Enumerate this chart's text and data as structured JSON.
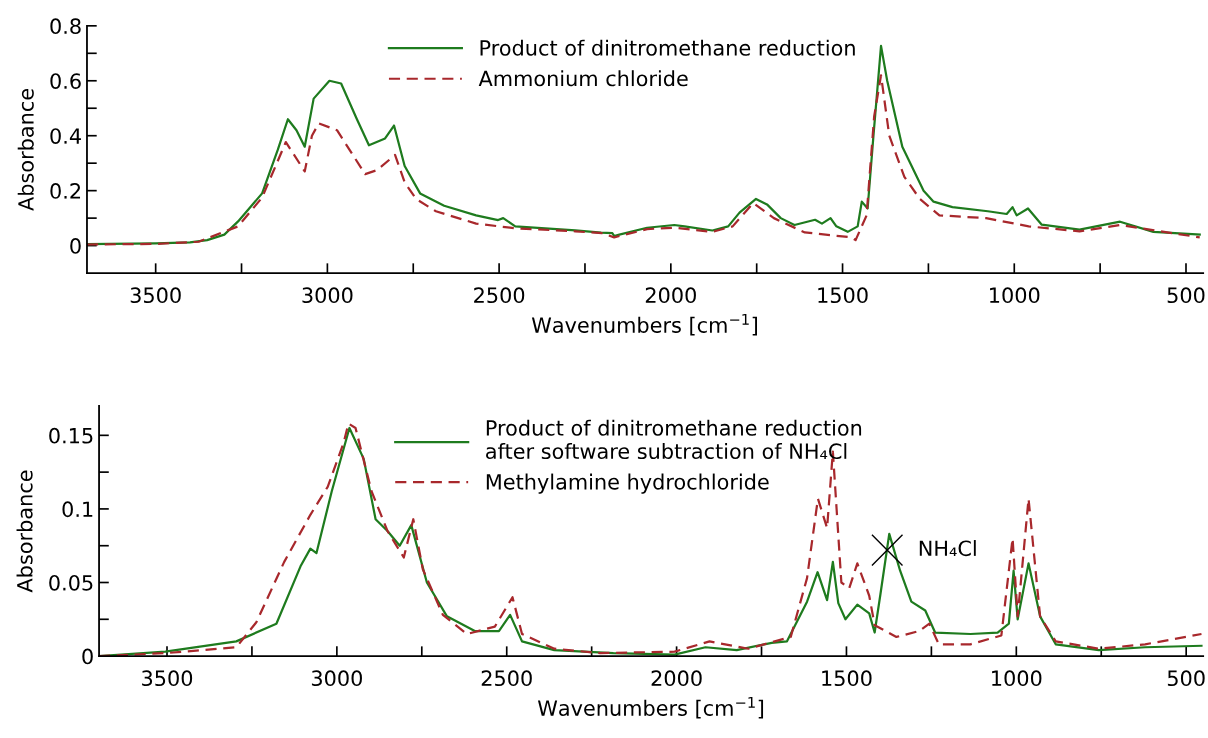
{
  "chart_data": [
    {
      "type": "line",
      "xlabel": "Wavenumbers [cm$^{−1}$]",
      "ylabel": "Absorbance",
      "xlim": [
        3700,
        450
      ],
      "ylim": [
        -0.1,
        0.8
      ],
      "xticks": [
        3500,
        {
          "value": 3250,
          "label": null
        },
        3000,
        {
          "value": 2750,
          "label": null
        },
        2500,
        {
          "value": 2250,
          "label": null
        },
        2000,
        {
          "value": 1750,
          "label": null
        },
        1500,
        {
          "value": 1250,
          "label": null
        },
        1000,
        {
          "value": 750,
          "label": null
        },
        500
      ],
      "yticks": [
        0,
        {
          "value": 0.1,
          "label": null
        },
        0.2,
        {
          "value": 0.3,
          "label": null
        },
        0.4,
        {
          "value": 0.5,
          "label": null
        },
        0.6,
        {
          "value": 0.7,
          "label": null
        },
        0.8
      ],
      "legend": "top",
      "grid": false,
      "marker": "none",
      "series": [
        {
          "name": "Product of dinitromethane reduction",
          "color": "#1e7b1e",
          "line_style": "solid",
          "x": [
            3700,
            3500,
            3400,
            3350,
            3300,
            3260,
            3190,
            3144,
            3115,
            3090,
            3066,
            3040,
            2994,
            2960,
            2914,
            2879,
            2832,
            2806,
            2775,
            2730,
            2660,
            2567,
            2503,
            2488,
            2453,
            2278,
            2203,
            2170,
            2165,
            2150,
            2069,
            1990,
            1960,
            1879,
            1833,
            1800,
            1752,
            1720,
            1680,
            1640,
            1580,
            1560,
            1535,
            1518,
            1485,
            1456,
            1444,
            1427,
            1410,
            1388,
            1370,
            1326,
            1264,
            1235,
            1180,
            1077,
            1022,
            1005,
            993,
            960,
            920,
            810,
            692,
            595,
            460
          ],
          "values": [
            0.005,
            0.008,
            0.012,
            0.02,
            0.04,
            0.088,
            0.19,
            0.35,
            0.46,
            0.42,
            0.36,
            0.535,
            0.6,
            0.59,
            0.46,
            0.365,
            0.39,
            0.437,
            0.29,
            0.19,
            0.145,
            0.11,
            0.093,
            0.1,
            0.07,
            0.055,
            0.047,
            0.045,
            0.035,
            0.04,
            0.065,
            0.075,
            0.07,
            0.055,
            0.07,
            0.12,
            0.17,
            0.15,
            0.1,
            0.075,
            0.094,
            0.08,
            0.1,
            0.07,
            0.05,
            0.07,
            0.16,
            0.135,
            0.4,
            0.727,
            0.6,
            0.36,
            0.2,
            0.16,
            0.14,
            0.125,
            0.115,
            0.14,
            0.11,
            0.135,
            0.076,
            0.058,
            0.087,
            0.05,
            0.04
          ]
        },
        {
          "name": "Ammonium chloride",
          "color": "#a8282c",
          "line_style": "dashed",
          "x": [
            3700,
            3500,
            3375,
            3260,
            3190,
            3121,
            3066,
            3045,
            3025,
            2972,
            2890,
            2855,
            2803,
            2775,
            2742,
            2684,
            2567,
            2453,
            2278,
            2200,
            2165,
            2069,
            1990,
            1879,
            1820,
            1760,
            1700,
            1610,
            1475,
            1462,
            1430,
            1408,
            1388,
            1364,
            1320,
            1275,
            1218,
            1082,
            958,
            810,
            692,
            460
          ],
          "values": [
            0.004,
            0.006,
            0.014,
            0.07,
            0.175,
            0.377,
            0.27,
            0.4,
            0.445,
            0.42,
            0.26,
            0.275,
            0.33,
            0.23,
            0.17,
            0.125,
            0.08,
            0.063,
            0.052,
            0.045,
            0.03,
            0.06,
            0.065,
            0.05,
            0.07,
            0.155,
            0.1,
            0.048,
            0.03,
            0.02,
            0.11,
            0.47,
            0.62,
            0.4,
            0.25,
            0.17,
            0.11,
            0.1,
            0.07,
            0.052,
            0.075,
            0.03
          ]
        }
      ]
    },
    {
      "type": "line",
      "xlabel": "Wavenumbers [cm$^{−1}$]",
      "ylabel": "Absorbance",
      "xlim": [
        3700,
        450
      ],
      "ylim": [
        0,
        0.17
      ],
      "xticks": [
        3500,
        {
          "value": 3250,
          "label": null
        },
        3000,
        {
          "value": 2750,
          "label": null
        },
        2500,
        {
          "value": 2250,
          "label": null
        },
        2000,
        {
          "value": 1750,
          "label": null
        },
        1500,
        {
          "value": 1250,
          "label": null
        },
        1000,
        {
          "value": 750,
          "label": null
        },
        500
      ],
      "yticks": [
        0,
        {
          "value": 0.025,
          "label": null
        },
        0.05,
        {
          "value": 0.075,
          "label": null
        },
        0.1,
        {
          "value": 0.125,
          "label": null
        },
        0.15
      ],
      "legend": "top",
      "grid": false,
      "marker": "none",
      "annotations": [
        {
          "text": "NH₄Cl",
          "x": 1380,
          "y": 0.072
        }
      ],
      "series": [
        {
          "name": "Product of dinitromethane reduction\nafter software subtraction of NH₄Cl",
          "color": "#1e7b1e",
          "line_style": "solid",
          "x": [
            3700,
            3505,
            3296,
            3178,
            3107,
            3078,
            3060,
            3015,
            2963,
            2921,
            2886,
            2851,
            2815,
            2781,
            2735,
            2676,
            2594,
            2523,
            2490,
            2455,
            2360,
            2186,
            2006,
            1915,
            1823,
            1720,
            1675,
            1616,
            1585,
            1557,
            1540,
            1524,
            1503,
            1468,
            1433,
            1417,
            1400,
            1374,
            1342,
            1309,
            1268,
            1239,
            1135,
            1055,
            1022,
            1008,
            996,
            964,
            930,
            884,
            757,
            621,
            455
          ],
          "values": [
            0,
            0.003,
            0.01,
            0.022,
            0.061,
            0.073,
            0.07,
            0.112,
            0.155,
            0.134,
            0.093,
            0.085,
            0.075,
            0.089,
            0.05,
            0.027,
            0.017,
            0.017,
            0.028,
            0.01,
            0.004,
            0.002,
            0.001,
            0.006,
            0.004,
            0.009,
            0.01,
            0.037,
            0.057,
            0.038,
            0.064,
            0.036,
            0.025,
            0.035,
            0.029,
            0.016,
            0.042,
            0.083,
            0.058,
            0.037,
            0.031,
            0.016,
            0.015,
            0.016,
            0.022,
            0.058,
            0.025,
            0.063,
            0.027,
            0.008,
            0.004,
            0.006,
            0.007
          ]
        },
        {
          "name": "Methylamine hydrochloride",
          "color": "#a8282c",
          "line_style": "dashed",
          "x": [
            3700,
            3505,
            3296,
            3237,
            3155,
            3078,
            3027,
            2980,
            2966,
            2945,
            2898,
            2851,
            2803,
            2775,
            2747,
            2688,
            2617,
            2535,
            2483,
            2455,
            2360,
            2225,
            2006,
            1903,
            1789,
            1664,
            1616,
            1584,
            1557,
            1540,
            1515,
            1492,
            1468,
            1433,
            1417,
            1353,
            1286,
            1256,
            1228,
            1135,
            1044,
            1011,
            996,
            964,
            930,
            884,
            757,
            621,
            455
          ],
          "values": [
            0,
            0.002,
            0.006,
            0.023,
            0.064,
            0.096,
            0.115,
            0.145,
            0.158,
            0.155,
            0.112,
            0.085,
            0.067,
            0.093,
            0.059,
            0.028,
            0.015,
            0.02,
            0.04,
            0.015,
            0.005,
            0.002,
            0.003,
            0.01,
            0.005,
            0.013,
            0.053,
            0.107,
            0.087,
            0.139,
            0.05,
            0.046,
            0.063,
            0.041,
            0.021,
            0.013,
            0.017,
            0.022,
            0.008,
            0.008,
            0.014,
            0.08,
            0.027,
            0.107,
            0.027,
            0.01,
            0.005,
            0.008,
            0.015
          ]
        }
      ]
    }
  ]
}
